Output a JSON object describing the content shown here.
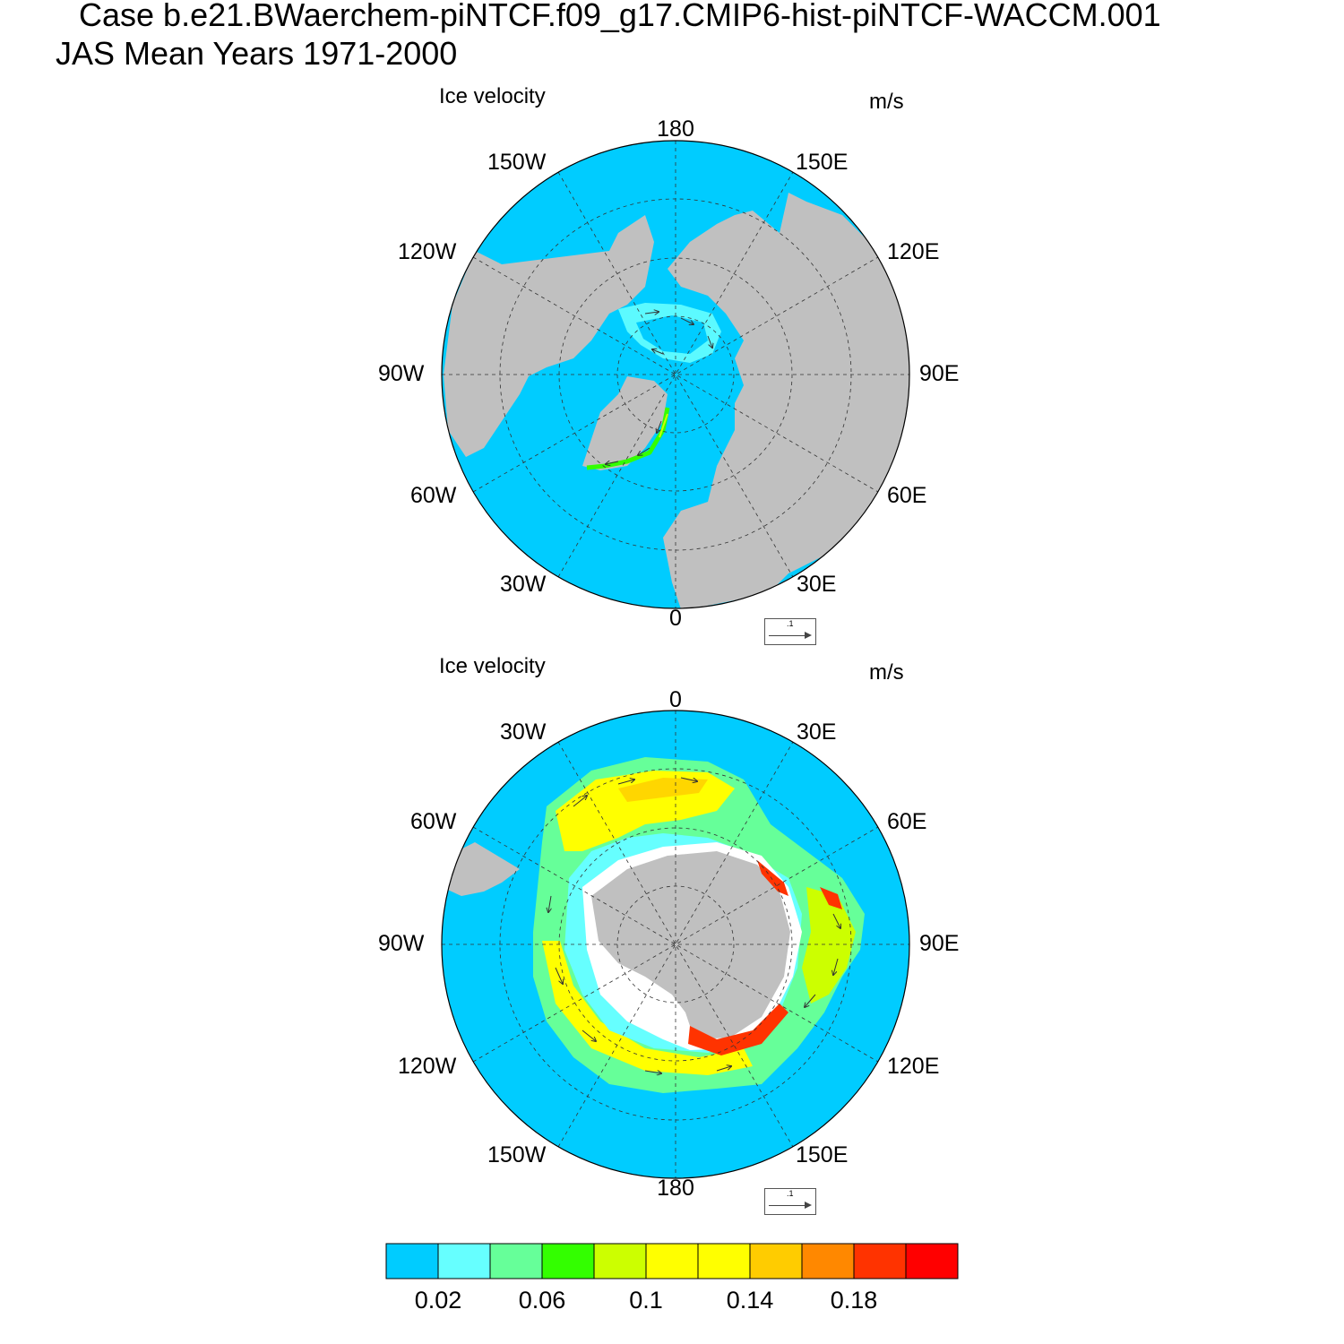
{
  "header": {
    "case_line": "Case b.e21.BWaerchem-piNTCF.f09_g17.CMIP6-hist-piNTCF-WACCM.001",
    "period_line": "JAS Mean   Years 1971-2000"
  },
  "panels": [
    {
      "title": "Ice velocity",
      "units": "m/s",
      "hemisphere": "north",
      "lon_labels": {
        "top": "180",
        "top_left": "150W",
        "top_right": "150E",
        "upper_left": "120W",
        "upper_right": "120E",
        "left": "90W",
        "right": "90E",
        "lower_left": "60W",
        "lower_right": "60E",
        "bottom_left": "30W",
        "bottom_right": "30E",
        "bottom": "0"
      },
      "reference_vector": ".1"
    },
    {
      "title": "Ice velocity",
      "units": "m/s",
      "hemisphere": "south",
      "lon_labels": {
        "top": "0",
        "top_left": "30W",
        "top_right": "30E",
        "upper_left": "60W",
        "upper_right": "60E",
        "left": "90W",
        "right": "90E",
        "lower_left": "120W",
        "lower_right": "120E",
        "bottom_left": "150W",
        "bottom_right": "150E",
        "bottom": "180"
      },
      "reference_vector": ".1"
    }
  ],
  "colorbar": {
    "colors": [
      "#00ccff",
      "#66ffff",
      "#66ff99",
      "#33ff00",
      "#ccff00",
      "#ffff00",
      "#ffff00",
      "#ffcc00",
      "#ff8800",
      "#ff3300",
      "#ff0000"
    ],
    "labels": [
      "0.02",
      "0.06",
      "0.1",
      "0.14",
      "0.18"
    ]
  },
  "colors": {
    "ocean": "#00ccff",
    "land": "#c0c0c0"
  }
}
